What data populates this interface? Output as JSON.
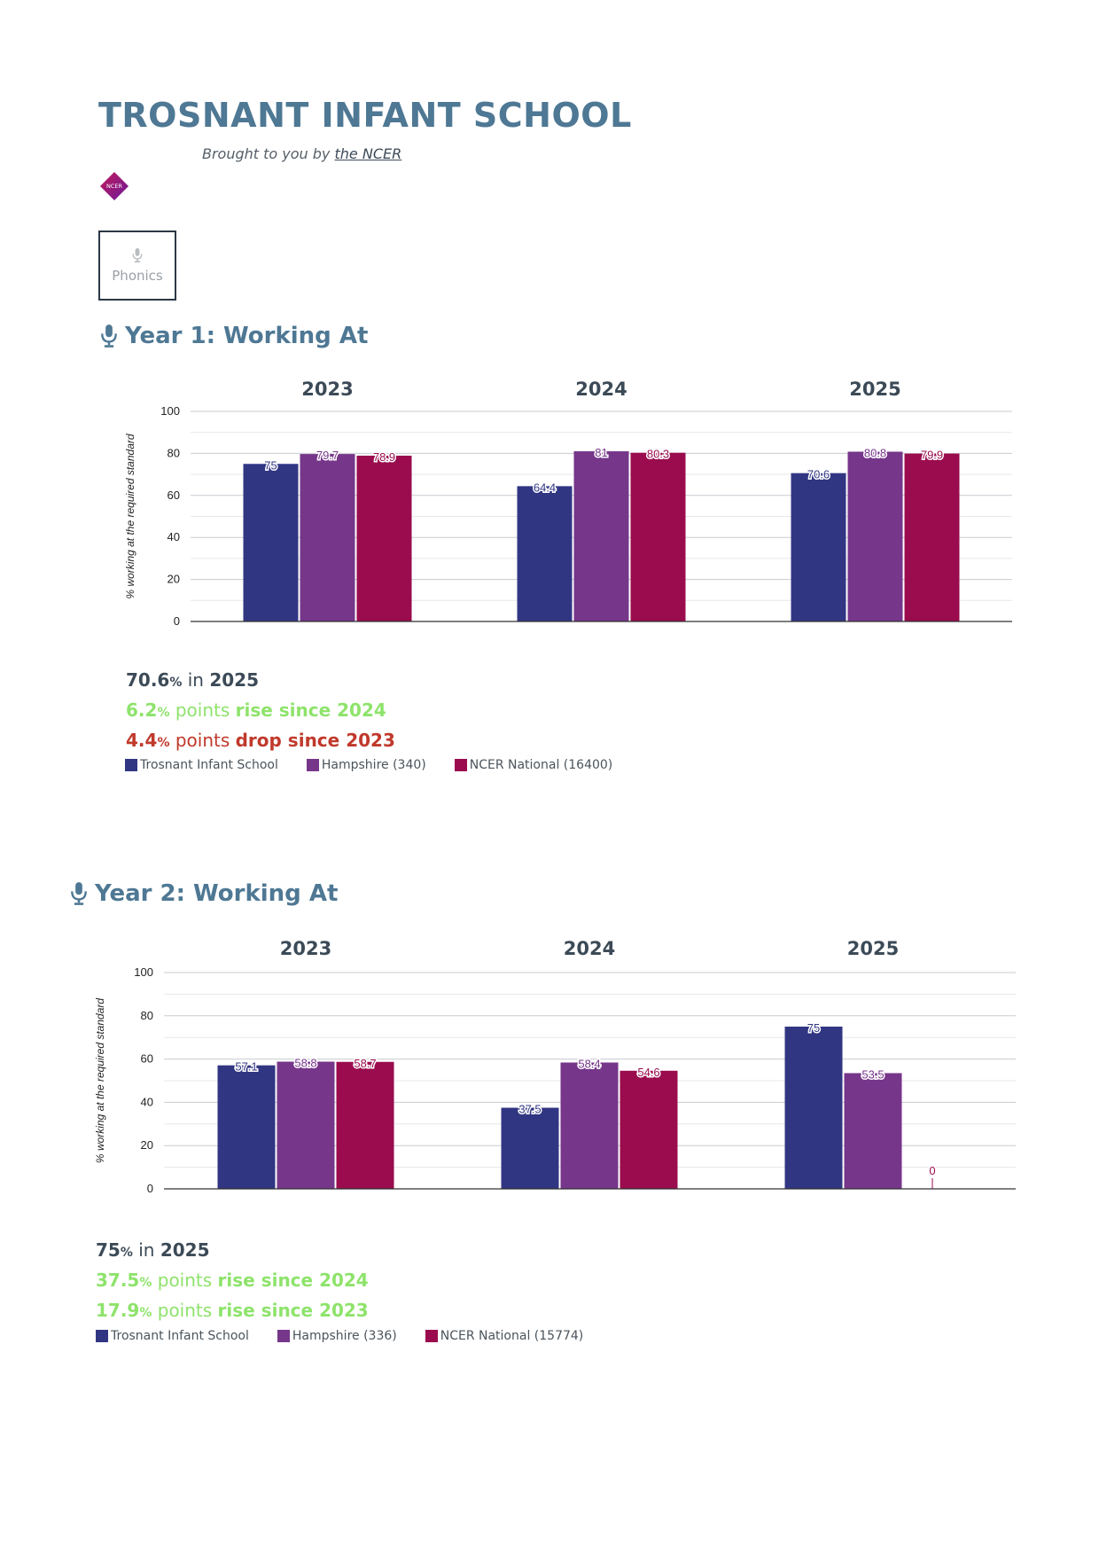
{
  "page": {
    "title": "TROSNANT INFANT SCHOOL",
    "byline_prefix": "Brought to you by",
    "byline_link": "the NCER",
    "logo_text": "NCER",
    "tab": {
      "label": "Phonics",
      "icon": "mic-icon"
    }
  },
  "colors": {
    "title": "#4e7894",
    "school": "#313683",
    "hampshire": "#76368a",
    "national": "#9a0c4e",
    "rise": "#8ee36b",
    "drop": "#c0392b"
  },
  "sections": [
    {
      "title": "Year 1: Working At",
      "icon": "mic-icon",
      "summary": {
        "current_value": "70.6",
        "current_unit": "%",
        "current_text": " in ",
        "current_year": "2025",
        "change1_value": "6.2",
        "change1_unit": "%",
        "change1_text": " points ",
        "change1_label": "rise since 2024",
        "change1_direction": "rise",
        "change2_value": "4.4",
        "change2_unit": "%",
        "change2_text": " points ",
        "change2_label": "drop since 2023",
        "change2_direction": "drop"
      },
      "legend": [
        "Trosnant Infant School",
        "Hampshire (340)",
        "NCER National (16400)"
      ]
    },
    {
      "title": "Year 2: Working At",
      "icon": "mic-icon",
      "summary": {
        "current_value": "75",
        "current_unit": "%",
        "current_text": " in ",
        "current_year": "2025",
        "change1_value": "37.5",
        "change1_unit": "%",
        "change1_text": " points ",
        "change1_label": "rise since 2024",
        "change1_direction": "rise",
        "change2_value": "17.9",
        "change2_unit": "%",
        "change2_text": " points ",
        "change2_label": "rise since 2023",
        "change2_direction": "rise"
      },
      "legend": [
        "Trosnant Infant School",
        "Hampshire (336)",
        "NCER National (15774)"
      ]
    }
  ],
  "chart_data": [
    {
      "type": "bar",
      "title": "",
      "categories": [
        "2023",
        "2024",
        "2025"
      ],
      "ylabel": "% working at the required standard",
      "ylim": [
        0,
        100
      ],
      "yticks": [
        0,
        20,
        40,
        60,
        80,
        100
      ],
      "grid": true,
      "series": [
        {
          "name": "Trosnant Infant School",
          "values": [
            75,
            64.4,
            70.6
          ],
          "labels": [
            "75",
            "64.4",
            "70.6"
          ]
        },
        {
          "name": "Hampshire (340)",
          "values": [
            79.7,
            81,
            80.8
          ],
          "labels": [
            "79.7",
            "81",
            "80.8"
          ]
        },
        {
          "name": "NCER National (16400)",
          "values": [
            78.9,
            80.3,
            79.9
          ],
          "labels": [
            "78.9",
            "80.3",
            "79.9"
          ]
        }
      ]
    },
    {
      "type": "bar",
      "title": "",
      "categories": [
        "2023",
        "2024",
        "2025"
      ],
      "ylabel": "% working at the required standard",
      "ylim": [
        0,
        100
      ],
      "yticks": [
        0,
        20,
        40,
        60,
        80,
        100
      ],
      "grid": true,
      "series": [
        {
          "name": "Trosnant Infant School",
          "values": [
            57.1,
            37.5,
            75
          ],
          "labels": [
            "57.1",
            "37.5",
            "75"
          ]
        },
        {
          "name": "Hampshire (336)",
          "values": [
            58.8,
            58.4,
            53.5
          ],
          "labels": [
            "58.8",
            "58.4",
            "53.5"
          ]
        },
        {
          "name": "NCER National (15774)",
          "values": [
            58.7,
            54.6,
            0
          ],
          "labels": [
            "58.7",
            "54.6",
            "0"
          ]
        }
      ]
    }
  ]
}
